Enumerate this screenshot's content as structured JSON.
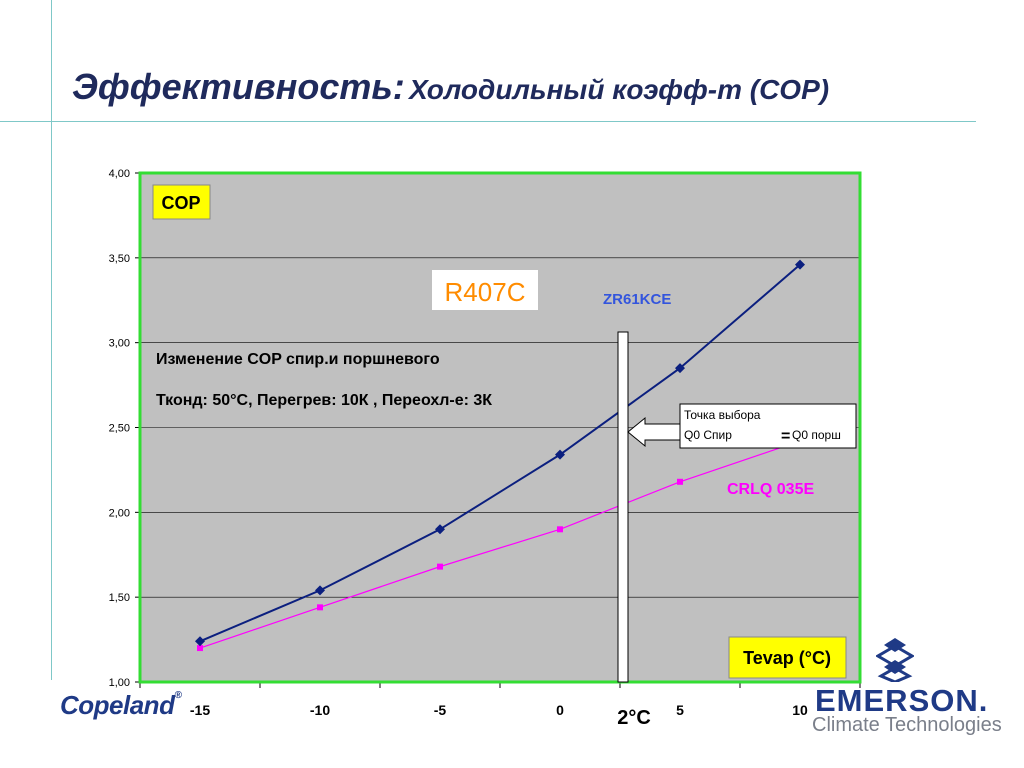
{
  "header": {
    "title_main": "Эффективность:",
    "title_sub": "Холодильный коэфф-т (COP)"
  },
  "chart_data": {
    "type": "line",
    "x": [
      -15,
      -10,
      -5,
      0,
      5,
      10
    ],
    "x_tick_labels": [
      "-15",
      "-10",
      "-5",
      "0",
      "5",
      "10"
    ],
    "y_tick_labels": [
      "1,00",
      "1,50",
      "2,00",
      "2,50",
      "3,00",
      "3,50",
      "4,00"
    ],
    "xlim": [
      -17.5,
      12.5
    ],
    "ylim": [
      1.0,
      4.0
    ],
    "grid": true,
    "series": [
      {
        "name": "ZR61KCE",
        "color": "#0b1f7f",
        "marker": "diamond",
        "values": [
          1.24,
          1.54,
          1.9,
          2.34,
          2.85,
          3.46
        ]
      },
      {
        "name": "CRLQ 035E",
        "color": "#ff00ff",
        "marker": "square",
        "values": [
          1.2,
          1.44,
          1.68,
          1.9,
          2.18,
          2.42
        ]
      }
    ],
    "ylabel": "COP",
    "xlabel": "Tevap (°C)",
    "colors": {
      "plot_bg": "#c0c0c0",
      "plot_border": "#33dd33",
      "label_box": "#ffff00"
    }
  },
  "annotations": {
    "refrigerant": "R407C",
    "desc_line1": "Изменение COP спир.и поршневого",
    "desc_line2": "Тконд: 50°С, Перегрев: 10К , Переохл-е: 3К",
    "selection_line1": "Точка выбора",
    "selection_left": "Q0 Спир",
    "selection_eq": "=",
    "selection_right": "Q0 порш",
    "marker_value": "2°C"
  },
  "logos": {
    "copeland": "Copeland",
    "copeland_mark": "®",
    "emerson": "EMERSON.",
    "climate": "Climate Technologies"
  }
}
